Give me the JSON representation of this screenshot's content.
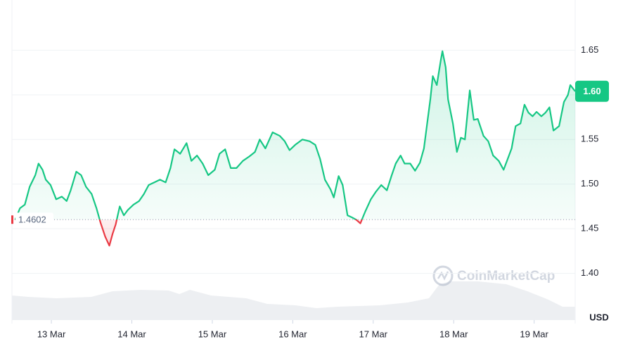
{
  "chart_data": {
    "type": "line",
    "x": [
      12.55,
      12.61,
      12.67,
      12.73,
      12.8,
      12.84,
      12.89,
      12.93,
      12.99,
      13.06,
      13.13,
      13.19,
      13.24,
      13.31,
      13.37,
      13.43,
      13.5,
      13.56,
      13.61,
      13.67,
      13.72,
      13.76,
      13.8,
      13.85,
      13.9,
      13.95,
      14.02,
      14.09,
      14.15,
      14.21,
      14.28,
      14.35,
      14.42,
      14.48,
      14.53,
      14.6,
      14.68,
      14.74,
      14.81,
      14.88,
      14.95,
      15.03,
      15.09,
      15.16,
      15.23,
      15.3,
      15.38,
      15.46,
      15.53,
      15.59,
      15.66,
      15.75,
      15.84,
      15.9,
      15.96,
      16.03,
      16.12,
      16.21,
      16.28,
      16.34,
      16.4,
      16.47,
      16.51,
      16.57,
      16.62,
      16.68,
      16.73,
      16.79,
      16.84,
      16.9,
      16.97,
      17.03,
      17.1,
      17.17,
      17.23,
      17.28,
      17.34,
      17.39,
      17.46,
      17.52,
      17.58,
      17.63,
      17.67,
      17.71,
      17.74,
      17.79,
      17.84,
      17.86,
      17.9,
      17.93,
      17.99,
      18.04,
      18.09,
      18.14,
      18.2,
      18.25,
      18.3,
      18.37,
      18.43,
      18.49,
      18.56,
      18.62,
      18.67,
      18.72,
      18.77,
      18.83,
      18.88,
      18.93,
      18.98,
      19.03,
      19.09,
      19.14,
      19.19,
      19.24,
      19.31,
      19.37,
      19.42,
      19.45,
      19.51
    ],
    "values": [
      1.46,
      1.473,
      1.477,
      1.497,
      1.51,
      1.523,
      1.516,
      1.505,
      1.499,
      1.483,
      1.486,
      1.481,
      1.493,
      1.514,
      1.51,
      1.497,
      1.489,
      1.473,
      1.457,
      1.441,
      1.431,
      1.444,
      1.455,
      1.475,
      1.465,
      1.471,
      1.477,
      1.481,
      1.489,
      1.499,
      1.502,
      1.505,
      1.502,
      1.518,
      1.539,
      1.534,
      1.546,
      1.526,
      1.532,
      1.523,
      1.51,
      1.516,
      1.534,
      1.539,
      1.518,
      1.518,
      1.526,
      1.531,
      1.536,
      1.55,
      1.54,
      1.558,
      1.554,
      1.548,
      1.538,
      1.544,
      1.55,
      1.548,
      1.544,
      1.528,
      1.505,
      1.494,
      1.485,
      1.509,
      1.499,
      1.465,
      1.463,
      1.46,
      1.456,
      1.469,
      1.483,
      1.491,
      1.499,
      1.493,
      1.51,
      1.523,
      1.532,
      1.523,
      1.523,
      1.515,
      1.524,
      1.54,
      1.568,
      1.595,
      1.621,
      1.611,
      1.639,
      1.649,
      1.631,
      1.595,
      1.568,
      1.536,
      1.552,
      1.55,
      1.605,
      1.572,
      1.573,
      1.554,
      1.548,
      1.532,
      1.526,
      1.516,
      1.528,
      1.54,
      1.565,
      1.568,
      1.589,
      1.58,
      1.576,
      1.581,
      1.576,
      1.58,
      1.586,
      1.56,
      1.565,
      1.592,
      1.6,
      1.611,
      1.604
    ],
    "last_value_label": "1.60",
    "baseline": 1.4602,
    "up_color": "#16c784",
    "down_color": "#ea3943",
    "xlim": [
      12.51,
      19.51
    ],
    "xticks": [
      {
        "value": 13,
        "label": "13 Mar"
      },
      {
        "value": 14,
        "label": "14 Mar"
      },
      {
        "value": 15,
        "label": "15 Mar"
      },
      {
        "value": 16,
        "label": "16 Mar"
      },
      {
        "value": 17,
        "label": "17 Mar"
      },
      {
        "value": 18,
        "label": "18 Mar"
      },
      {
        "value": 19,
        "label": "19 Mar"
      }
    ],
    "ylim": [
      1.35,
      1.7
    ],
    "yticks": [
      {
        "value": 1.4,
        "label": "1.40"
      },
      1.45,
      {
        "value": 1.5,
        "label": "1.50"
      },
      1.55,
      {
        "value": 1.6,
        "label": "1.60"
      },
      1.65
    ],
    "y_axis_label": "USD",
    "watermark": "CoinMarketCap",
    "grid": true
  }
}
